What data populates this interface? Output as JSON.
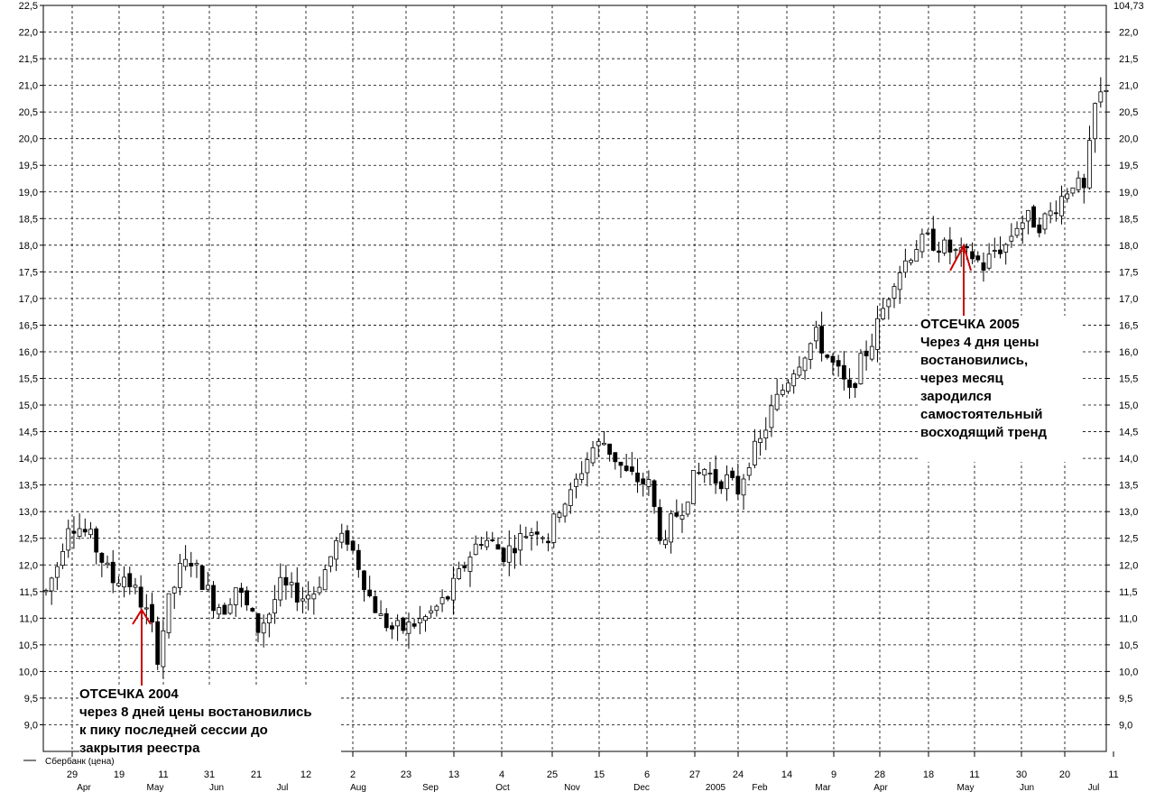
{
  "chart_data": {
    "type": "candlestick",
    "y_axis_left": {
      "ticks": [
        "22,5",
        "22,0",
        "21,5",
        "21,0",
        "20,5",
        "20,0",
        "19,5",
        "19,0",
        "18,5",
        "18,0",
        "17,5",
        "17,0",
        "16,5",
        "16,0",
        "15,5",
        "15,0",
        "14,5",
        "14,0",
        "13,5",
        "13,0",
        "12,5",
        "12,0",
        "11,5",
        "11,0",
        "10,5",
        "10,0",
        "9,5",
        "9,0"
      ],
      "ylim": [
        8.5,
        22.5
      ]
    },
    "y_axis_right": {
      "top_label": "104,73",
      "ticks": [
        "22,0",
        "21,5",
        "21,0",
        "20,5",
        "20,0",
        "19,5",
        "19,0",
        "18,5",
        "18,0",
        "17,5",
        "17,0",
        "16,5",
        "16,0",
        "15,5",
        "15,0",
        "14,5",
        "14,0",
        "13,5",
        "13,0",
        "12,5",
        "12,0",
        "11,5",
        "11,0",
        "10,5",
        "10,0",
        "9,5",
        "9,0"
      ]
    },
    "x_day_labels": [
      "29",
      "19",
      "11",
      "31",
      "21",
      "12",
      "2",
      "23",
      "13",
      "4",
      "25",
      "15",
      "6",
      "27",
      "24",
      "14",
      "9",
      "28",
      "18",
      "11",
      "30",
      "20",
      "11"
    ],
    "x_month_labels": [
      "Apr",
      "May",
      "Jun",
      "Jul",
      "Aug",
      "Sep",
      "Oct",
      "Nov",
      "Dec",
      "2005",
      "Feb",
      "Mar",
      "Apr",
      "May",
      "Jun",
      "Jul"
    ],
    "legend": "Сбербанк (цена)",
    "series": [
      {
        "name": "Сбербанк (цена)",
        "anchors": [
          [
            0,
            11.5
          ],
          [
            2,
            12.0
          ],
          [
            4,
            12.8
          ],
          [
            6,
            12.7
          ],
          [
            8,
            12.5
          ],
          [
            10,
            12.1
          ],
          [
            12,
            11.7
          ],
          [
            14,
            11.8
          ],
          [
            16,
            11.5
          ],
          [
            18,
            11.1
          ],
          [
            19,
            10.8
          ],
          [
            20,
            10.3
          ],
          [
            21,
            10.8
          ],
          [
            22,
            11.3
          ],
          [
            24,
            11.9
          ],
          [
            26,
            12.1
          ],
          [
            28,
            11.7
          ],
          [
            30,
            11.3
          ],
          [
            32,
            11.2
          ],
          [
            34,
            11.6
          ],
          [
            36,
            11.2
          ],
          [
            38,
            10.8
          ],
          [
            40,
            11.1
          ],
          [
            42,
            11.6
          ],
          [
            44,
            11.5
          ],
          [
            46,
            11.4
          ],
          [
            48,
            11.5
          ],
          [
            50,
            11.9
          ],
          [
            52,
            12.4
          ],
          [
            54,
            12.5
          ],
          [
            56,
            12.0
          ],
          [
            58,
            11.4
          ],
          [
            60,
            11.0
          ],
          [
            62,
            10.8
          ],
          [
            64,
            10.8
          ],
          [
            66,
            10.9
          ],
          [
            68,
            11.0
          ],
          [
            70,
            11.2
          ],
          [
            72,
            11.4
          ],
          [
            74,
            11.8
          ],
          [
            76,
            12.2
          ],
          [
            78,
            12.5
          ],
          [
            80,
            12.4
          ],
          [
            82,
            12.2
          ],
          [
            84,
            12.4
          ],
          [
            86,
            12.6
          ],
          [
            88,
            12.7
          ],
          [
            90,
            12.5
          ],
          [
            92,
            13.1
          ],
          [
            94,
            13.3
          ],
          [
            96,
            13.8
          ],
          [
            98,
            14.2
          ],
          [
            100,
            14.3
          ],
          [
            102,
            14.0
          ],
          [
            104,
            13.7
          ],
          [
            106,
            13.6
          ],
          [
            108,
            13.5
          ],
          [
            110,
            12.6
          ],
          [
            111,
            12.3
          ],
          [
            112,
            12.8
          ],
          [
            114,
            13.1
          ],
          [
            116,
            13.6
          ],
          [
            118,
            13.8
          ],
          [
            120,
            13.6
          ],
          [
            122,
            13.6
          ],
          [
            124,
            13.4
          ],
          [
            126,
            14.0
          ],
          [
            128,
            14.3
          ],
          [
            130,
            14.9
          ],
          [
            132,
            15.3
          ],
          [
            134,
            15.7
          ],
          [
            136,
            16.0
          ],
          [
            138,
            16.3
          ],
          [
            140,
            15.9
          ],
          [
            142,
            15.6
          ],
          [
            144,
            15.2
          ],
          [
            146,
            15.8
          ],
          [
            148,
            16.2
          ],
          [
            150,
            16.8
          ],
          [
            152,
            17.4
          ],
          [
            154,
            17.7
          ],
          [
            156,
            18.0
          ],
          [
            158,
            18.1
          ],
          [
            160,
            18.0
          ],
          [
            162,
            17.9
          ],
          [
            164,
            17.8
          ],
          [
            166,
            17.8
          ],
          [
            168,
            17.6
          ],
          [
            170,
            17.9
          ],
          [
            172,
            18.0
          ],
          [
            174,
            18.4
          ],
          [
            176,
            18.5
          ],
          [
            178,
            18.4
          ],
          [
            180,
            18.6
          ],
          [
            182,
            18.9
          ],
          [
            184,
            19.2
          ],
          [
            186,
            19.0
          ],
          [
            188,
            20.6
          ],
          [
            190,
            21.0
          ]
        ],
        "n_days": 191
      }
    ]
  },
  "annotations": {
    "cut_2004": {
      "lines": [
        "ОТСЕЧКА 2004",
        "через 8 дней цены востановились",
        "к пику последней сессии до",
        "закрытия реестра"
      ]
    },
    "cut_2005": {
      "lines": [
        "ОТСЕЧКА 2005",
        "Через 4 дня цены",
        "востановились,",
        "через месяц",
        "зародился",
        "самостоятельный",
        "восходящий тренд"
      ]
    }
  },
  "colors": {
    "candle": "#000000",
    "grid": "#000000",
    "arrow": "#cc0000"
  }
}
